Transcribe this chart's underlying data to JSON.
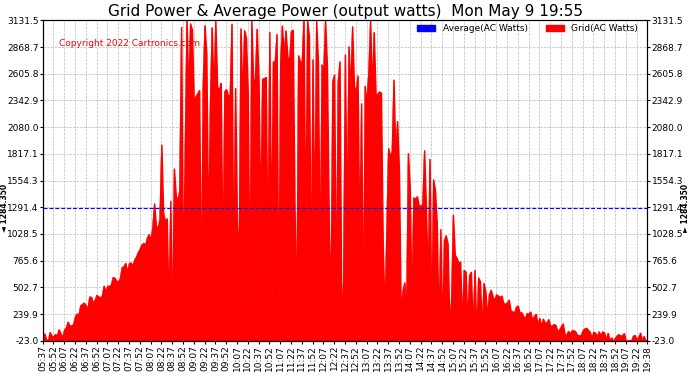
{
  "title": "Grid Power & Average Power (output watts)  Mon May 9 19:55",
  "copyright": "Copyright 2022 Cartronics.com",
  "legend_avg": "Average(AC Watts)",
  "legend_grid": "Grid(AC Watts)",
  "avg_color": "blue",
  "grid_color": "red",
  "fill_color": "red",
  "background_color": "#ffffff",
  "ymin": -23.0,
  "ymax": 3131.5,
  "yticks": [
    -23.0,
    239.9,
    502.7,
    765.6,
    1028.5,
    1291.4,
    1554.3,
    1817.1,
    2080.0,
    2342.9,
    2605.8,
    2868.7,
    3131.5
  ],
  "avg_line_value": 1284.35,
  "avg_line_label": "1284.350",
  "title_fontsize": 11,
  "copyright_fontsize": 6.5,
  "tick_fontsize": 6.5,
  "xtick_start": [
    5,
    37
  ],
  "xtick_end": [
    19,
    38
  ],
  "n_points": 337,
  "tick_every": 6
}
